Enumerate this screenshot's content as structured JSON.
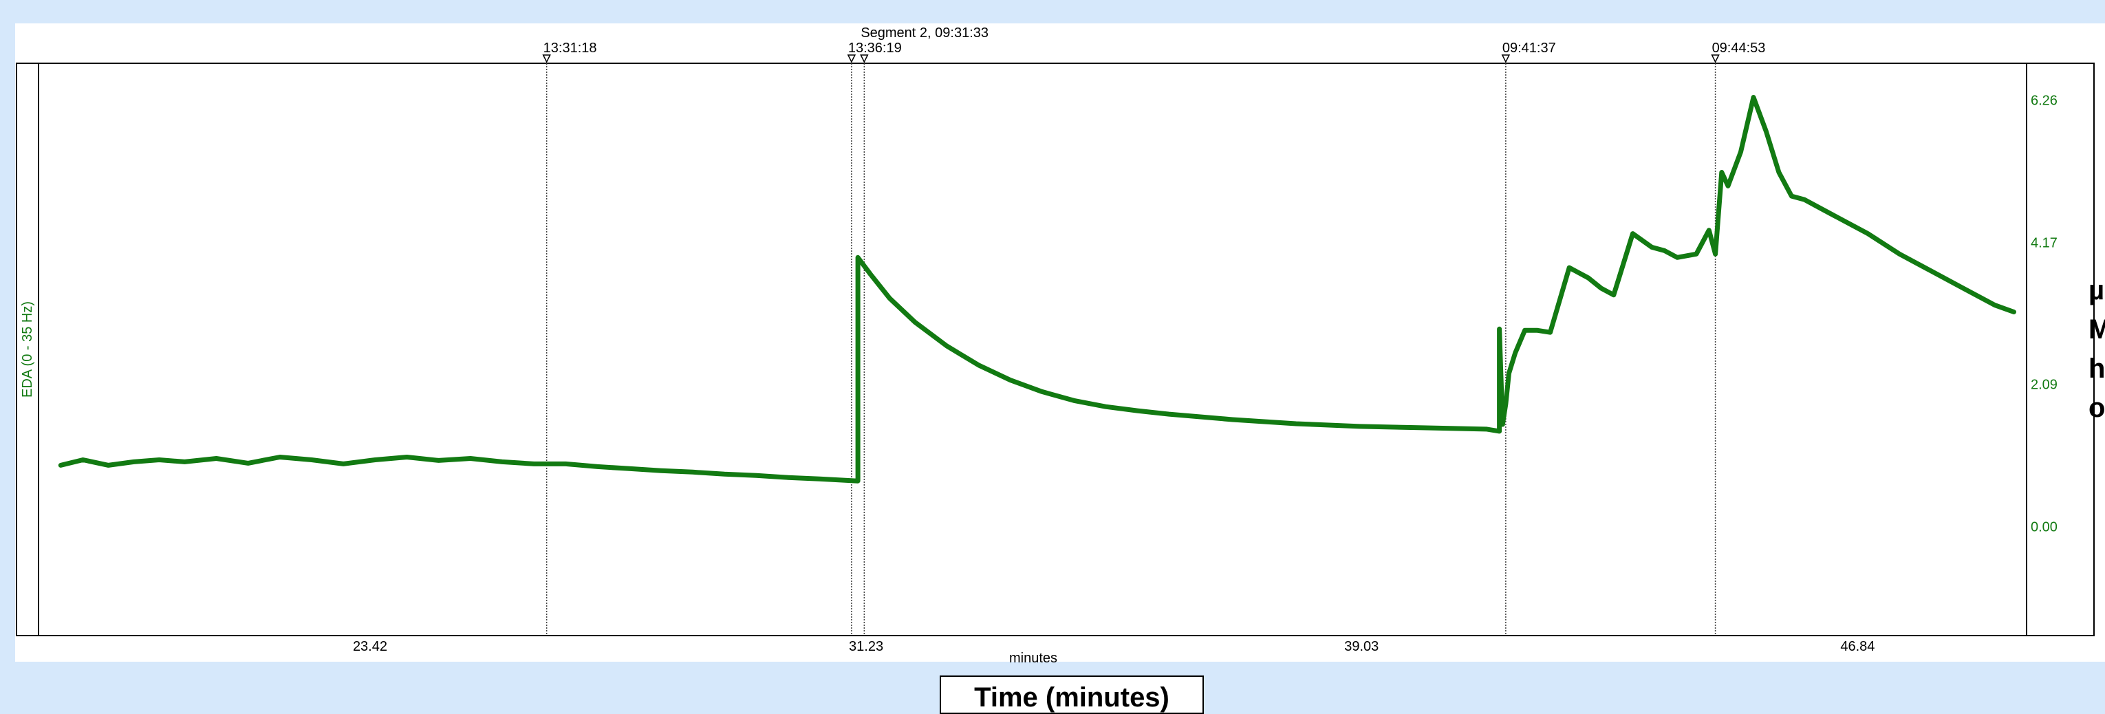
{
  "chart_data": {
    "type": "line",
    "title": "",
    "xlabel": "minutes",
    "ylabel": "EDA (0 - 35 Hz)",
    "x_title_box": "Time (minutes)",
    "right_unit_label": "µ\nM\nh\no",
    "x_ticks": [
      23.42,
      31.23,
      39.03,
      46.84
    ],
    "y_ticks": [
      0.0,
      2.09,
      4.17,
      6.26
    ],
    "xlim": [
      18.2,
      49.5
    ],
    "ylim": [
      -1.6,
      6.8
    ],
    "grid": false,
    "line_color": "#127a12",
    "markers": [
      {
        "label": "13:31:18",
        "x": 26.2
      },
      {
        "label": "13:36:19",
        "x": 31.0
      },
      {
        "label": "Segment 2, 09:31:33",
        "x": 31.2
      },
      {
        "label": "09:41:37",
        "x": 41.3
      },
      {
        "label": "09:44:53",
        "x": 44.6
      }
    ],
    "series": [
      {
        "name": "",
        "x": [
          18.55,
          18.9,
          19.3,
          19.7,
          20.1,
          20.5,
          21.0,
          21.5,
          22.0,
          22.5,
          23.0,
          23.5,
          24.0,
          24.5,
          25.0,
          25.5,
          26.0,
          26.5,
          27.0,
          27.5,
          28.0,
          28.5,
          29.0,
          29.5,
          30.0,
          30.5,
          31.1,
          31.1,
          31.3,
          31.6,
          32.0,
          32.5,
          33.0,
          33.5,
          34.0,
          34.5,
          35.0,
          35.5,
          36.0,
          37.0,
          38.0,
          39.0,
          40.0,
          41.0,
          41.2,
          41.2,
          41.25,
          41.3,
          41.35,
          41.45,
          41.6,
          41.8,
          42.0,
          42.3,
          42.6,
          42.8,
          43.0,
          43.3,
          43.6,
          43.8,
          44.0,
          44.3,
          44.5,
          44.6,
          44.7,
          44.8,
          45.0,
          45.2,
          45.4,
          45.6,
          45.8,
          46.0,
          46.3,
          46.6,
          47.0,
          47.5,
          48.0,
          48.5,
          49.0,
          49.3
        ],
        "y": [
          0.9,
          0.98,
          0.9,
          0.95,
          0.98,
          0.95,
          1.0,
          0.93,
          1.02,
          0.98,
          0.92,
          0.98,
          1.02,
          0.97,
          1.0,
          0.95,
          0.92,
          0.92,
          0.88,
          0.85,
          0.82,
          0.8,
          0.77,
          0.75,
          0.72,
          0.7,
          0.67,
          3.95,
          3.7,
          3.35,
          3.0,
          2.65,
          2.37,
          2.15,
          1.98,
          1.85,
          1.76,
          1.7,
          1.65,
          1.57,
          1.51,
          1.47,
          1.45,
          1.43,
          1.4,
          2.9,
          1.5,
          1.8,
          2.25,
          2.55,
          2.88,
          2.88,
          2.85,
          3.8,
          3.65,
          3.5,
          3.4,
          4.3,
          4.1,
          4.05,
          3.95,
          4.0,
          4.35,
          4.0,
          5.2,
          5.0,
          5.5,
          6.3,
          5.8,
          5.2,
          4.85,
          4.8,
          4.65,
          4.5,
          4.3,
          4.0,
          3.75,
          3.5,
          3.25,
          3.15
        ]
      }
    ]
  }
}
